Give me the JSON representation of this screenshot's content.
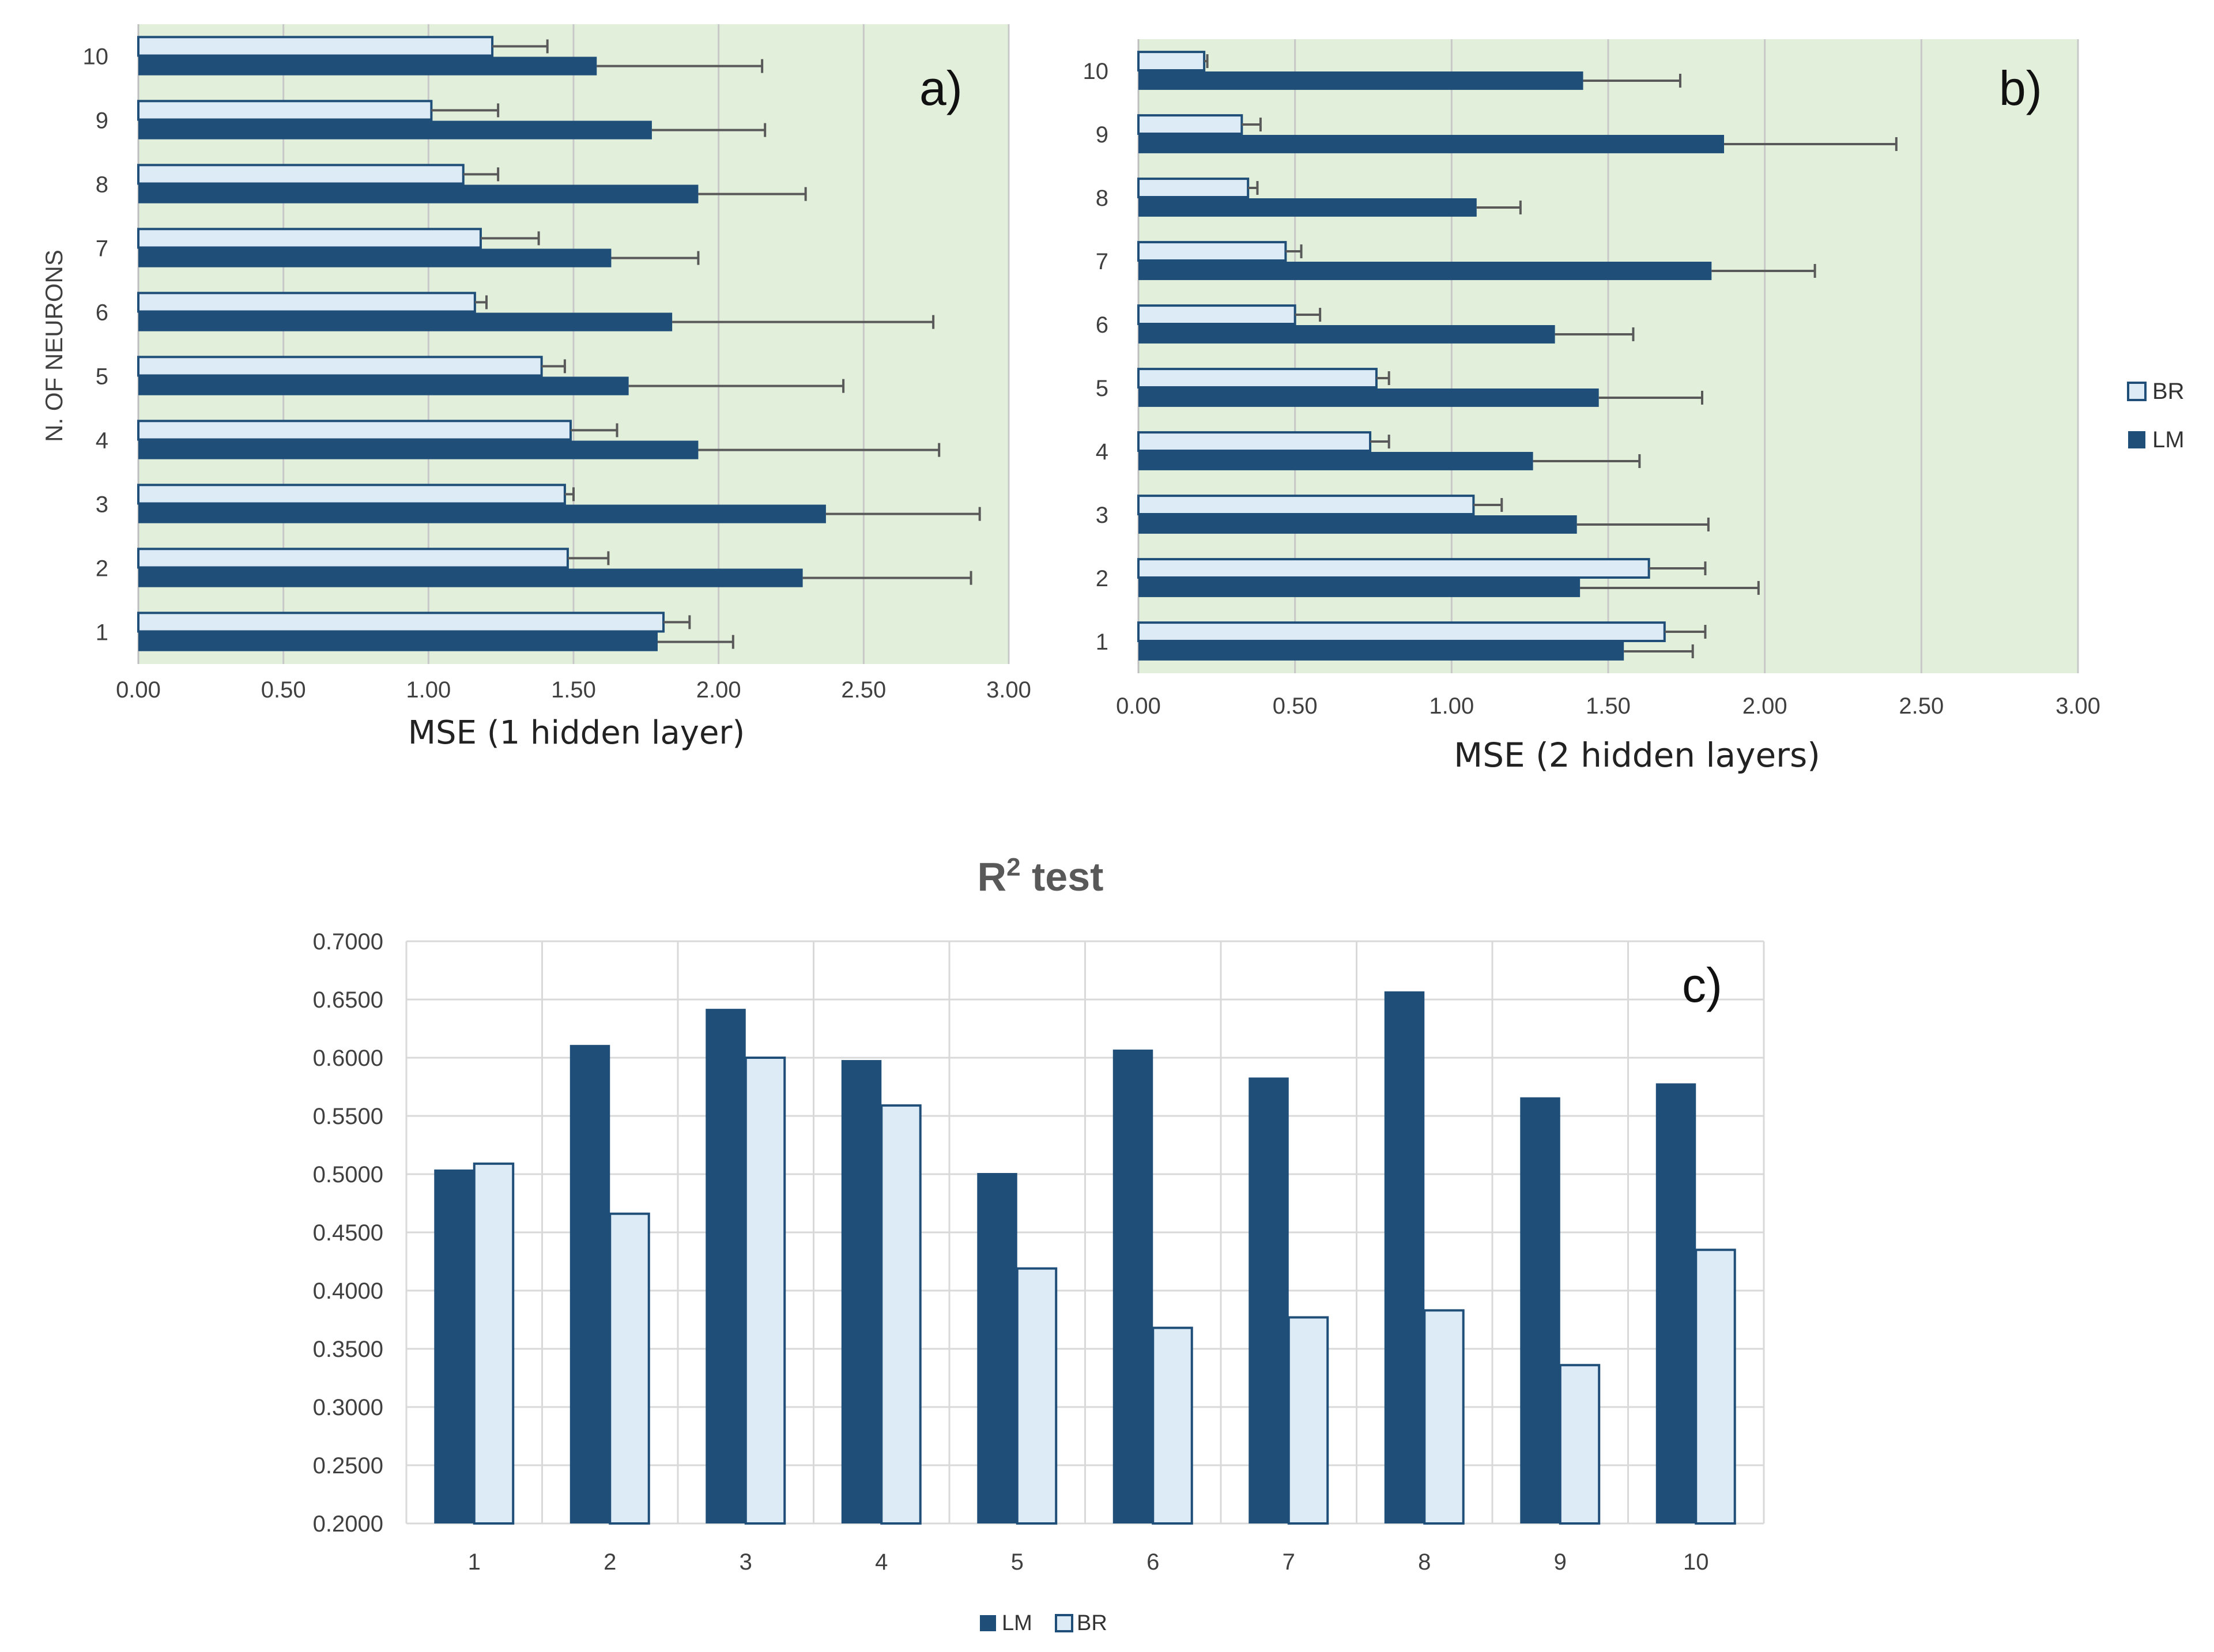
{
  "colors": {
    "lm": "#1f4e79",
    "br": "#ddebf7",
    "br_stroke": "#1f4e79",
    "plot_bg": "#e2efda",
    "grid": "#c8c8c8",
    "error": "#595959"
  },
  "legend_ab": {
    "br": "BR",
    "lm": "LM"
  },
  "legend_c": {
    "lm": "LM",
    "br": "BR"
  },
  "chart_data": [
    {
      "panel": "a)",
      "type": "bar",
      "orientation": "horizontal",
      "xlabel": "MSE (1 hidden layer)",
      "ylabel": "N. OF NEURONS",
      "xlim": [
        0,
        3
      ],
      "xticks": [
        "0.00",
        "0.50",
        "1.00",
        "1.50",
        "2.00",
        "2.50",
        "3.00"
      ],
      "categories": [
        "1",
        "2",
        "3",
        "4",
        "5",
        "6",
        "7",
        "8",
        "9",
        "10"
      ],
      "series": [
        {
          "name": "BR",
          "values": [
            1.81,
            1.48,
            1.47,
            1.49,
            1.39,
            1.16,
            1.18,
            1.12,
            1.01,
            1.22
          ],
          "errors": [
            0.09,
            0.14,
            0.03,
            0.16,
            0.08,
            0.04,
            0.2,
            0.12,
            0.23,
            0.19
          ]
        },
        {
          "name": "LM",
          "values": [
            1.79,
            2.29,
            2.37,
            1.93,
            1.69,
            1.84,
            1.63,
            1.93,
            1.77,
            1.58
          ],
          "errors": [
            0.26,
            0.58,
            0.53,
            0.83,
            0.74,
            0.9,
            0.3,
            0.37,
            0.39,
            0.57
          ]
        }
      ]
    },
    {
      "panel": "b)",
      "type": "bar",
      "orientation": "horizontal",
      "xlabel": "MSE (2 hidden layers)",
      "xlim": [
        0,
        3
      ],
      "xticks": [
        "0.00",
        "0.50",
        "1.00",
        "1.50",
        "2.00",
        "2.50",
        "3.00"
      ],
      "categories": [
        "1",
        "2",
        "3",
        "4",
        "5",
        "6",
        "7",
        "8",
        "9",
        "10"
      ],
      "series": [
        {
          "name": "BR",
          "values": [
            1.68,
            1.63,
            1.07,
            0.74,
            0.76,
            0.5,
            0.47,
            0.35,
            0.33,
            0.21
          ],
          "errors": [
            0.13,
            0.18,
            0.09,
            0.06,
            0.04,
            0.08,
            0.05,
            0.03,
            0.06,
            0.01
          ]
        },
        {
          "name": "LM",
          "values": [
            1.55,
            1.41,
            1.4,
            1.26,
            1.47,
            1.33,
            1.83,
            1.08,
            1.87,
            1.42
          ],
          "errors": [
            0.22,
            0.57,
            0.42,
            0.34,
            0.33,
            0.25,
            0.33,
            0.14,
            0.55,
            0.31
          ]
        }
      ]
    },
    {
      "panel": "c)",
      "type": "bar",
      "orientation": "vertical",
      "title_main": "R",
      "title_sup": "2",
      "title_rest": " test",
      "ylim": [
        0.2,
        0.7
      ],
      "yticks": [
        "0.7000",
        "0.6500",
        "0.6000",
        "0.5500",
        "0.5000",
        "0.4500",
        "0.4000",
        "0.3500",
        "0.3000",
        "0.2500",
        "0.2000"
      ],
      "categories": [
        "1",
        "2",
        "3",
        "4",
        "5",
        "6",
        "7",
        "8",
        "9",
        "10"
      ],
      "series": [
        {
          "name": "LM",
          "values": [
            0.504,
            0.611,
            0.642,
            0.598,
            0.501,
            0.607,
            0.583,
            0.657,
            0.566,
            0.578
          ]
        },
        {
          "name": "BR",
          "values": [
            0.509,
            0.466,
            0.6,
            0.559,
            0.419,
            0.368,
            0.377,
            0.383,
            0.336,
            0.435
          ]
        }
      ]
    }
  ]
}
